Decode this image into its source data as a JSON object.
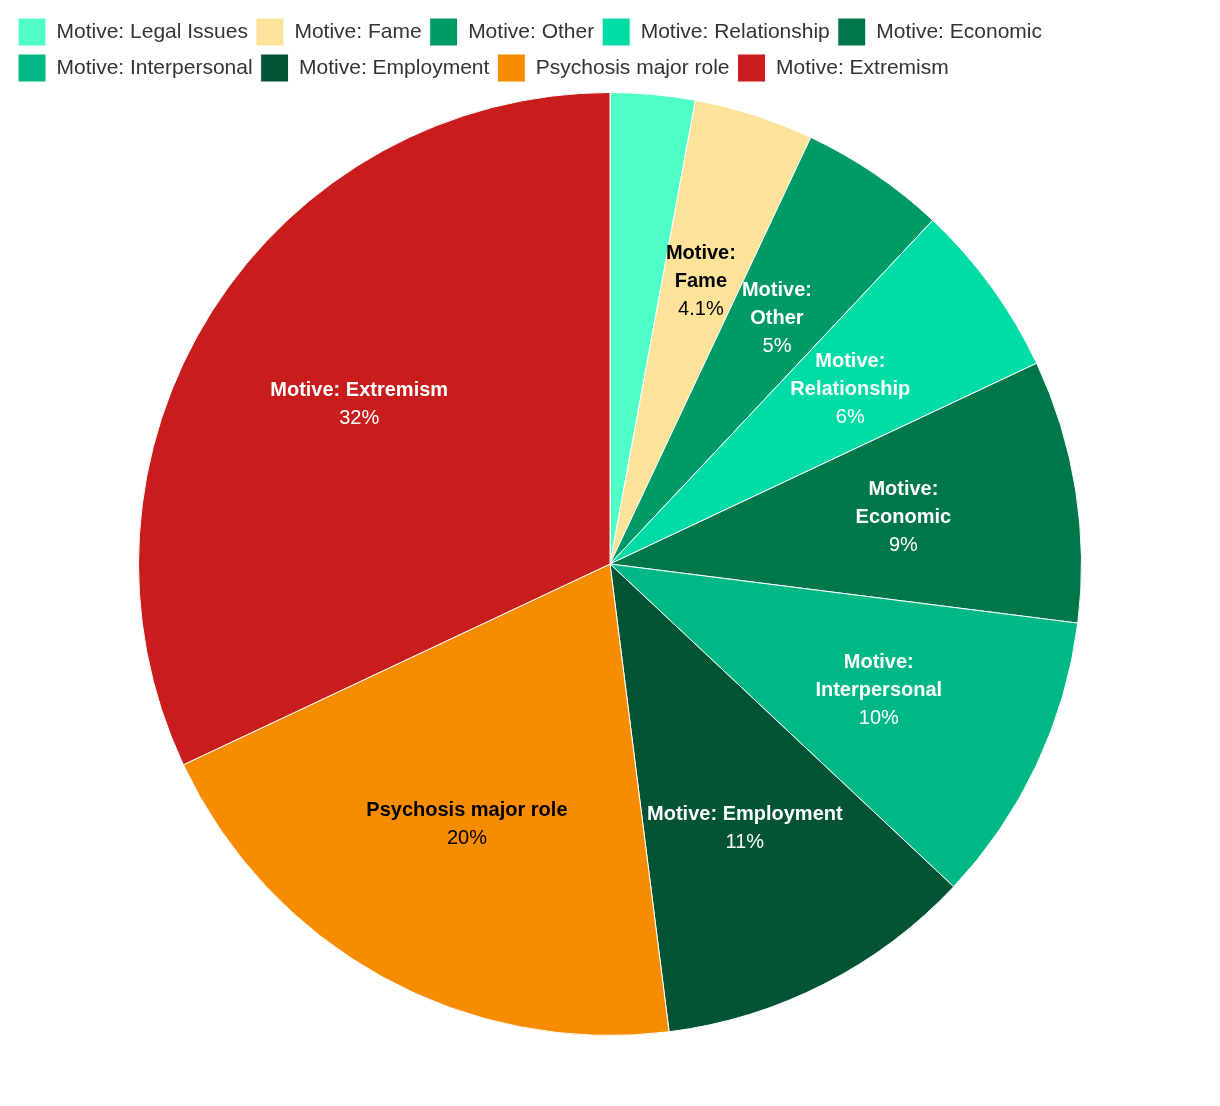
{
  "chart_data": {
    "type": "pie",
    "categories": [
      "Motive: Legal Issues",
      "Motive: Fame",
      "Motive: Other",
      "Motive: Relationship",
      "Motive: Economic",
      "Motive: Interpersonal",
      "Motive: Employment",
      "Psychosis major role",
      "Motive: Extremism"
    ],
    "values": [
      2.9,
      4.1,
      5,
      6,
      9,
      10,
      11,
      20,
      32
    ],
    "colors": [
      "#50ffc8",
      "#fde29a",
      "#009a68",
      "#00dca5",
      "#00774a",
      "#00b886",
      "#025434",
      "#f88c00",
      "#c91d1d"
    ],
    "value_labels": [
      null,
      "4.1%",
      "5%",
      "6%",
      "9%",
      "10%",
      "11%",
      "20%",
      "32%"
    ],
    "legend": "top"
  }
}
